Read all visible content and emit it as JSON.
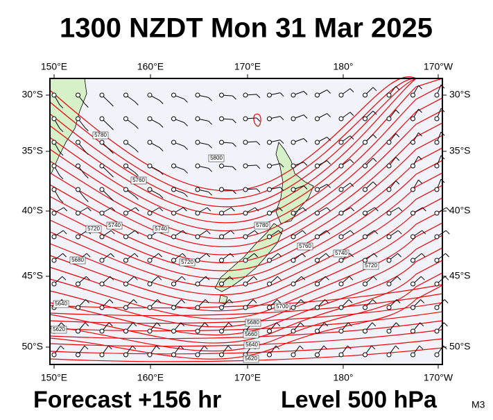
{
  "header": {
    "title": "1300 NZDT Mon 31 Mar 2025"
  },
  "axes": {
    "top_labels": [
      "150°E",
      "160°E",
      "170°E",
      "180°",
      "170°W"
    ],
    "bottom_labels": [
      "150°E",
      "160°E",
      "170°E",
      "180°",
      "170°W"
    ],
    "left_labels": [
      "30°S",
      "35°S",
      "40°S",
      "45°S",
      "50°S"
    ],
    "right_labels": [
      "30°S",
      "35°S",
      "40°S",
      "45°S",
      "50°S"
    ]
  },
  "contour_labels": [
    "5780",
    "5800",
    "5760",
    "5720",
    "5740",
    "5740",
    "5680",
    "5720",
    "5780",
    "5760",
    "5740",
    "5720",
    "5640",
    "5700",
    "5620",
    "5680",
    "5660",
    "5640",
    "5620"
  ],
  "footer": {
    "forecast": "Forecast +156 hr",
    "level": "Level 500 hPa",
    "code": "M3"
  }
}
